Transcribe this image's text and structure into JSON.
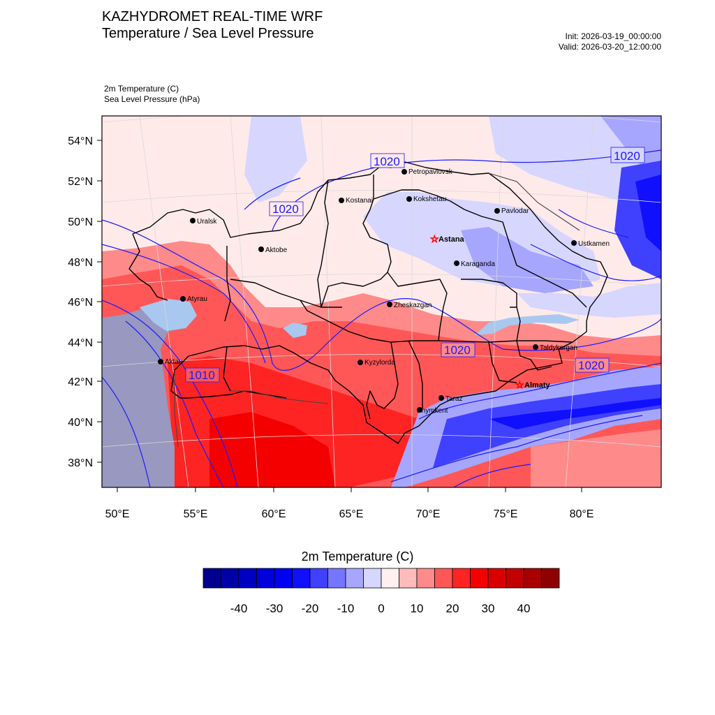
{
  "header": {
    "title_line1": "KAZHYDROMET REAL-TIME WRF",
    "title_line2": "Temperature / Sea Level Pressure",
    "init": "Init: 2026-03-19_00:00:00",
    "valid": "Valid: 2026-03-20_12:00:00"
  },
  "fields": {
    "temperature": "2m Temperature   (C)",
    "pressure": "Sea Level Pressure   (hPa)"
  },
  "map": {
    "lat_labels": [
      "54°N",
      "52°N",
      "50°N",
      "48°N",
      "46°N",
      "44°N",
      "42°N",
      "40°N",
      "38°N"
    ],
    "lon_labels": [
      "50°E",
      "55°E",
      "60°E",
      "65°E",
      "70°E",
      "75°E",
      "80°E"
    ],
    "contour_labels": [
      "1020",
      "1020",
      "1020",
      "1020",
      "1020",
      "1010"
    ],
    "cities": [
      {
        "name": "Petropavlovsk",
        "capital": false
      },
      {
        "name": "Kostanai",
        "capital": false
      },
      {
        "name": "Kokshetau",
        "capital": false
      },
      {
        "name": "Pavlodar",
        "capital": false
      },
      {
        "name": "Uralsk",
        "capital": false
      },
      {
        "name": "Aktobe",
        "capital": false
      },
      {
        "name": "Astana",
        "capital": true
      },
      {
        "name": "Ustkamen",
        "capital": false
      },
      {
        "name": "Karaganda",
        "capital": false
      },
      {
        "name": "Atyrau",
        "capital": false
      },
      {
        "name": "Zheskazgan",
        "capital": false
      },
      {
        "name": "Taldykorgan",
        "capital": false
      },
      {
        "name": "Aktau",
        "capital": false
      },
      {
        "name": "Kyzylorda",
        "capital": false
      },
      {
        "name": "Almaty",
        "capital": true
      },
      {
        "name": "Taraz",
        "capital": false
      },
      {
        "name": "Shymkent",
        "capital": false
      }
    ]
  },
  "colorbar": {
    "title": "2m Temperature  (C)",
    "colors": [
      "#00008f",
      "#0000a8",
      "#0000c2",
      "#0000db",
      "#0000f5",
      "#1010ff",
      "#4040ff",
      "#7575ff",
      "#a6a6ff",
      "#d6d6ff",
      "#fff0f0",
      "#ffbaba",
      "#ff8a8a",
      "#ff5757",
      "#ff2424",
      "#f50000",
      "#db0000",
      "#c20000",
      "#a80000",
      "#8f0000"
    ],
    "tick_labels": [
      "-40",
      "-30",
      "-20",
      "-10",
      "0",
      "10",
      "20",
      "30",
      "40"
    ]
  },
  "colors": {
    "contour": "#1a1aff",
    "border": "#000000"
  }
}
